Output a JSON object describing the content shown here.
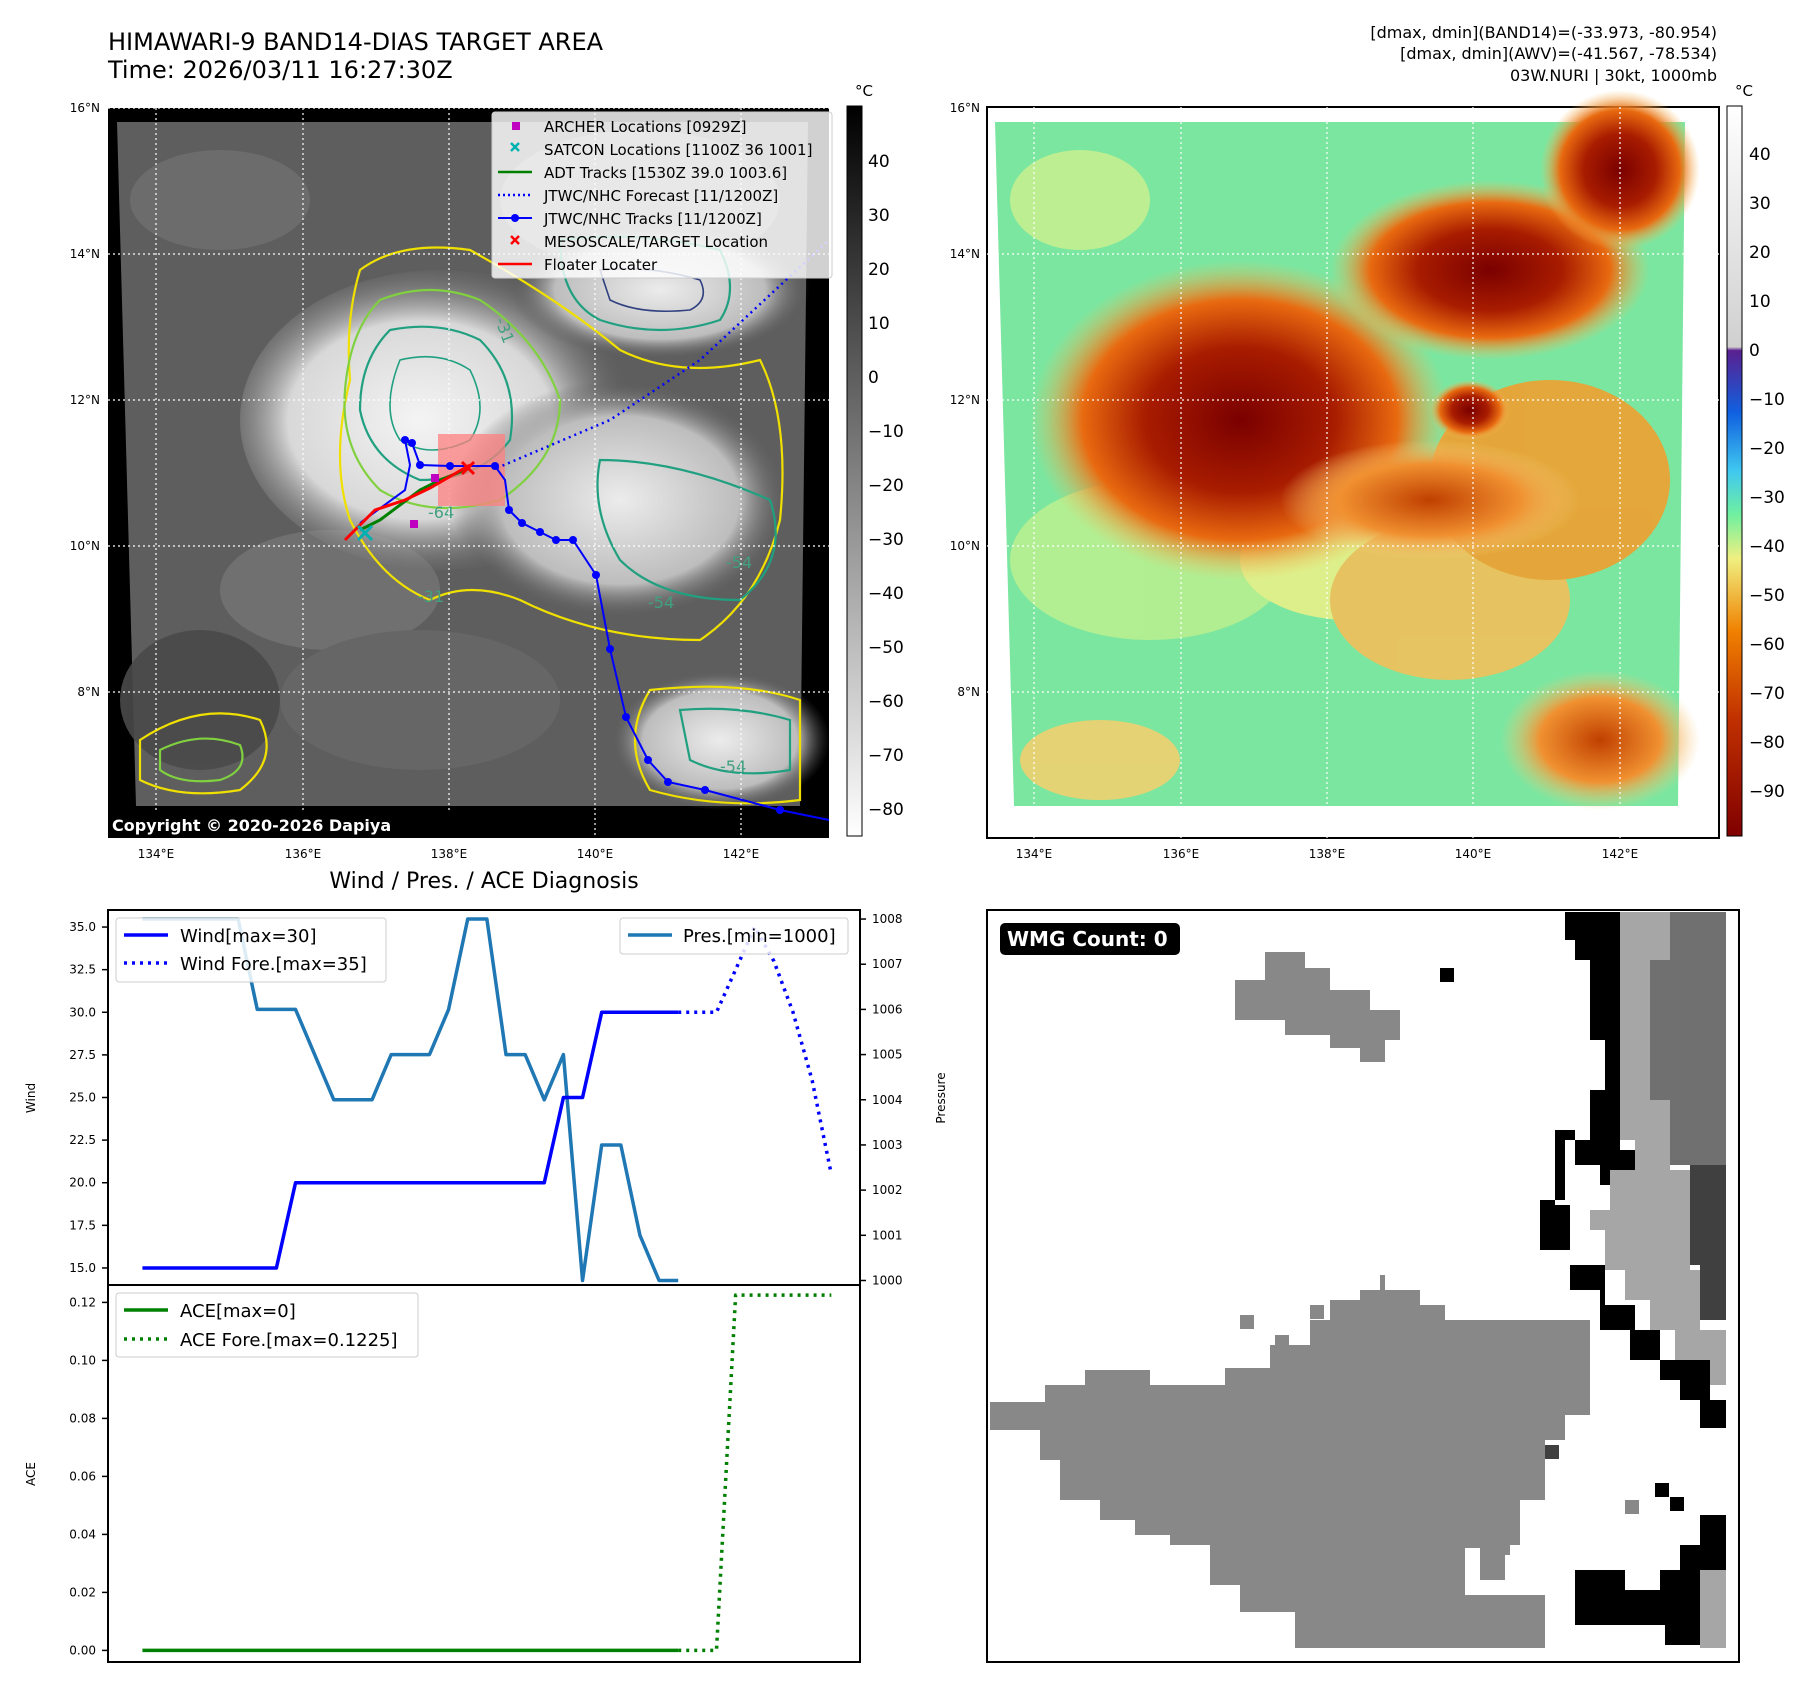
{
  "header": {
    "title_line1": "HIMAWARI-9 BAND14-DIAS TARGET AREA",
    "title_line2": "Time: 2026/03/11 16:27:30Z",
    "info_line1": "[dmax, dmin](BAND14)=(-33.973, -80.954)",
    "info_line2": "[dmax, dmin](AWV)=(-41.567, -78.534)",
    "info_line3": "03W.NURI | 30kt, 1000mb"
  },
  "maps": {
    "lat_labels": [
      "16°N",
      "14°N",
      "12°N",
      "10°N",
      "8°N"
    ],
    "lon_labels": [
      "134°E",
      "136°E",
      "138°E",
      "140°E",
      "142°E"
    ],
    "copyright": "Copyright © 2020-2026 Dapiya",
    "contour_labels": [
      "-31",
      "-54",
      "-64",
      "-54",
      "-54",
      "-31"
    ],
    "ir_colorbar": {
      "unit": "°C",
      "ticks": [
        "40",
        "30",
        "20",
        "10",
        "0",
        "−10",
        "−20",
        "−30",
        "−40",
        "−50",
        "−60",
        "−70",
        "−80"
      ]
    },
    "color_colorbar": {
      "unit": "°C",
      "ticks": [
        "40",
        "30",
        "20",
        "10",
        "0",
        "−10",
        "−20",
        "−30",
        "−40",
        "−50",
        "−60",
        "−70",
        "−80",
        "−90"
      ]
    },
    "legend": [
      {
        "label": "ARCHER Locations [0929Z]",
        "color": "#c000c0",
        "marker": "square"
      },
      {
        "label": "SATCON Locations [1100Z 36 1001]",
        "color": "#00b0b0",
        "marker": "x"
      },
      {
        "label": "ADT Tracks [1530Z 39.0 1003.6]",
        "color": "#008000",
        "marker": "line"
      },
      {
        "label": "JTWC/NHC Forecast [11/1200Z]",
        "color": "#0000ff",
        "marker": "dotted"
      },
      {
        "label": "JTWC/NHC Tracks [11/1200Z]",
        "color": "#0000ff",
        "marker": "line-dot"
      },
      {
        "label": "MESOSCALE/TARGET Location",
        "color": "#ff0000",
        "marker": "x"
      },
      {
        "label": "Floater Locater",
        "color": "#ff0000",
        "marker": "line"
      }
    ]
  },
  "diagnosis": {
    "title": "Wind / Pres. / ACE Diagnosis",
    "wind_ylabel": "Wind",
    "pres_ylabel": "Pressure",
    "ace_ylabel": "ACE",
    "wind_legend": [
      "Wind[max=30]",
      "Wind Fore.[max=35]"
    ],
    "pres_legend": [
      "Pres.[min=1000]"
    ],
    "ace_legend": [
      "ACE[max=0]",
      "ACE Fore.[max=0.1225]"
    ]
  },
  "wmg": {
    "label": "WMG Count: 0"
  },
  "chart_data": [
    {
      "type": "line",
      "title": "Wind / Pres. / ACE Diagnosis",
      "ylabel": "Wind",
      "ylim": [
        14,
        36
      ],
      "yticks": [
        "35.0",
        "32.5",
        "30.0",
        "27.5",
        "25.0",
        "22.5",
        "20.0",
        "17.5",
        "15.0"
      ],
      "series": [
        {
          "name": "Wind[max=30]",
          "color": "#0000ff",
          "style": "solid",
          "x": [
            0,
            1,
            2,
            3,
            4,
            5,
            6,
            7,
            8,
            9,
            10,
            11,
            12,
            13,
            14,
            15,
            16,
            17,
            18,
            19,
            20,
            21,
            22,
            23,
            24,
            25,
            26,
            27,
            28
          ],
          "values": [
            15,
            15,
            15,
            15,
            15,
            15,
            15,
            15,
            20,
            20,
            20,
            20,
            20,
            20,
            20,
            20,
            20,
            20,
            20,
            20,
            20,
            20,
            25,
            25,
            30,
            30,
            30,
            30,
            30
          ]
        },
        {
          "name": "Wind Fore.[max=35]",
          "color": "#0000ff",
          "style": "dotted",
          "x": [
            28,
            29,
            30,
            31,
            32,
            33,
            34,
            35,
            36
          ],
          "values": [
            30,
            30,
            30,
            32.5,
            35,
            33,
            30,
            26,
            20.5
          ]
        }
      ]
    },
    {
      "type": "line",
      "ylabel": "Pressure",
      "ylim": [
        999.9,
        1008.2
      ],
      "yticks": [
        "1008",
        "1007",
        "1006",
        "1005",
        "1004",
        "1003",
        "1002",
        "1001",
        "1000"
      ],
      "series": [
        {
          "name": "Pres.[min=1000]",
          "color": "#1f77b4",
          "style": "solid",
          "x": [
            0,
            1,
            2,
            3,
            4,
            5,
            6,
            7,
            8,
            9,
            10,
            11,
            12,
            13,
            14,
            15,
            16,
            17,
            18,
            19,
            20,
            21,
            22,
            23,
            24,
            25,
            26,
            27,
            28
          ],
          "values": [
            1008,
            1008,
            1008,
            1008,
            1008,
            1008,
            1006,
            1006,
            1006,
            1005,
            1004,
            1004,
            1004,
            1005,
            1005,
            1005,
            1006,
            1008,
            1008,
            1005,
            1005,
            1004,
            1005,
            1000,
            1003,
            1003,
            1001,
            1000,
            1000
          ]
        }
      ]
    },
    {
      "type": "line",
      "ylabel": "ACE",
      "ylim": [
        -0.004,
        0.126
      ],
      "yticks": [
        "0.12",
        "0.10",
        "0.08",
        "0.06",
        "0.04",
        "0.02",
        "0.00"
      ],
      "series": [
        {
          "name": "ACE[max=0]",
          "color": "#008000",
          "style": "solid",
          "x": [
            0,
            28
          ],
          "values": [
            0,
            0
          ]
        },
        {
          "name": "ACE Fore.[max=0.1225]",
          "color": "#008000",
          "style": "dotted",
          "x": [
            28,
            29,
            30,
            31,
            32,
            33,
            34,
            35,
            36
          ],
          "values": [
            0,
            0,
            0,
            0.1225,
            0.1225,
            0.1225,
            0.1225,
            0.1225,
            0.1225
          ]
        }
      ]
    }
  ]
}
